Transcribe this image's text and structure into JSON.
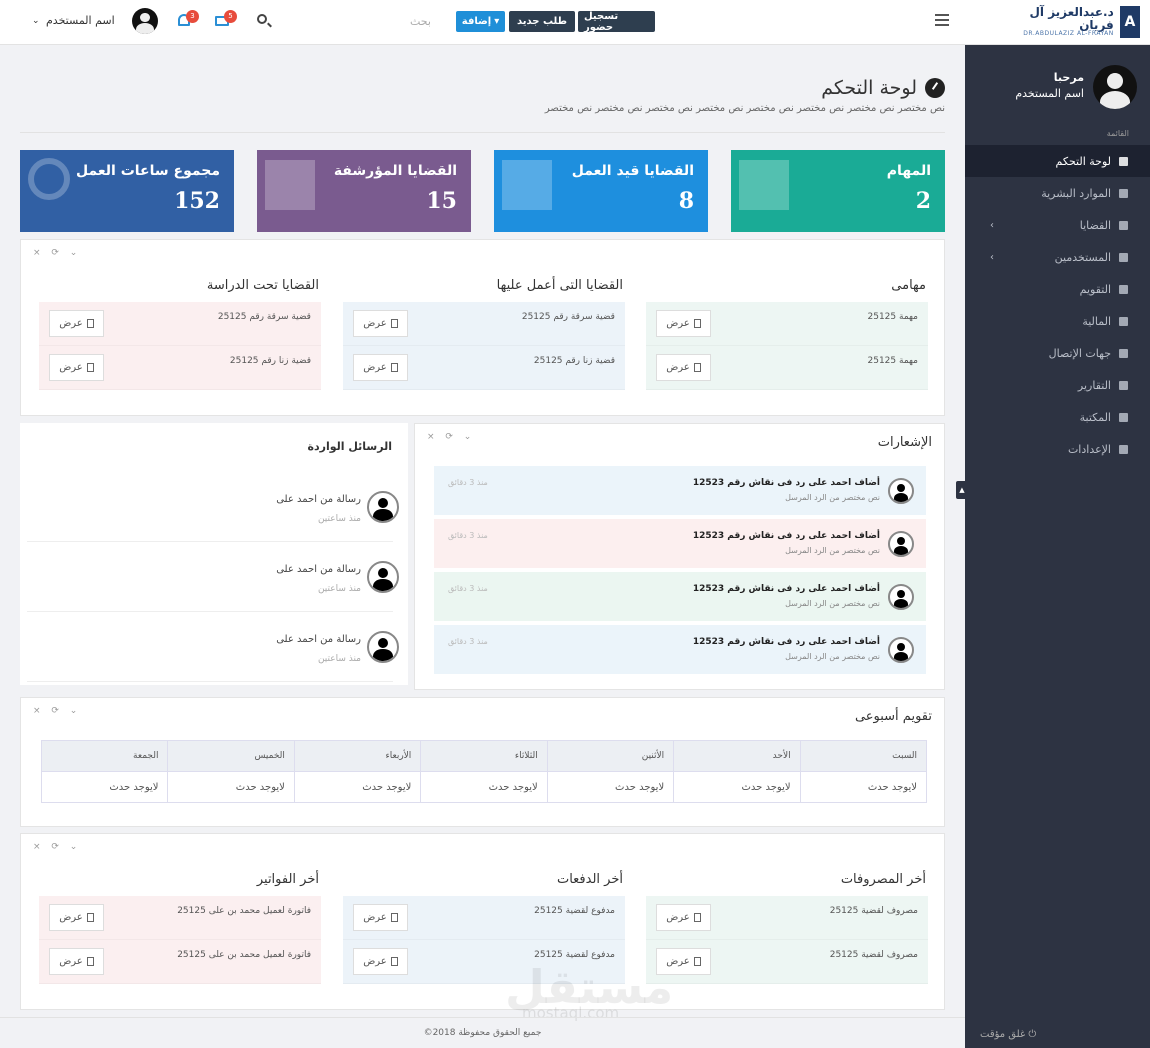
{
  "header": {
    "logo_ar": "د.عبدالعزيز آل فريان",
    "logo_en": "DR.ABDULAZIZ AL-FRAYAN",
    "logo_mark": "A",
    "btn_attendance": "تسجيل حضور",
    "btn_new_request": "طلب جديد",
    "btn_add": "إضافة",
    "search_text": "بحث",
    "mail_count": "5",
    "bell_count": "3",
    "user_name": "اسم المستخدم"
  },
  "sidebar": {
    "welcome": "مرحبا",
    "user_name": "اسم المستخدم",
    "menu_title": "القائمة",
    "items": [
      {
        "label": "لوحة التحكم",
        "icon": "home-icon",
        "active": true
      },
      {
        "label": "الموارد البشرية",
        "icon": "user-icon"
      },
      {
        "label": "القضايا",
        "icon": "gavel-icon",
        "arrow": "‹"
      },
      {
        "label": "المستخدمين",
        "icon": "users-icon",
        "arrow": "‹"
      },
      {
        "label": "التقويم",
        "icon": "calendar-icon"
      },
      {
        "label": "المالية",
        "icon": "money-icon"
      },
      {
        "label": "جهات الإتصال",
        "icon": "grid-icon"
      },
      {
        "label": "التقارير",
        "icon": "chart-icon"
      },
      {
        "label": "المكتبة",
        "icon": "book-icon"
      },
      {
        "label": "الإعدادات",
        "icon": "gear-icon"
      }
    ],
    "logout": "غلق مؤقت"
  },
  "page": {
    "title": "لوحة التحكم",
    "subtitle": "نص مختصر نص مختصر نص مختصر نص مختصر نص مختصر نص مختصر نص مختصر نص مختصر"
  },
  "stats": [
    {
      "label": "المهام",
      "value": "2",
      "color": "#1aab96"
    },
    {
      "label": "القضايا قيد العمل",
      "value": "8",
      "color": "#1e8fde"
    },
    {
      "label": "القضايا المؤرشفة",
      "value": "15",
      "color": "#7a5b8f"
    },
    {
      "label": "مجموع ساعات العمل",
      "value": "152",
      "color": "#3160a4"
    }
  ],
  "tasks_panel": {
    "columns": [
      {
        "title": "مهامى",
        "rows": [
          "مهمة 25125",
          "مهمة 25125"
        ],
        "bg": "#edf6f3"
      },
      {
        "title": "القضايا التى أعمل عليها",
        "rows": [
          "قضية سرقة رقم 25125",
          "قضية زنا رقم 25125"
        ],
        "bg": "#ecf3f9"
      },
      {
        "title": "القضايا تحت الدراسة",
        "rows": [
          "قضية سرقة رقم 25125",
          "قضية زنا رقم 25125"
        ],
        "bg": "#fbeff0"
      }
    ],
    "view_label": "عرض"
  },
  "notifications": {
    "title": "الإشعارات",
    "items": [
      {
        "title": "أضاف احمد على رد فى نقاش رقم 12523",
        "sub": "نص مختصر من الرد المرسل",
        "time": "منذ 3 دقائق",
        "bg": "#ebf4fa"
      },
      {
        "title": "أضاف احمد على رد فى نقاش رقم 12523",
        "sub": "نص مختصر من الرد المرسل",
        "time": "منذ 3 دقائق",
        "bg": "#fcefef"
      },
      {
        "title": "أضاف احمد على رد فى نقاش رقم 12523",
        "sub": "نص مختصر من الرد المرسل",
        "time": "منذ 3 دقائق",
        "bg": "#ebf6f1"
      },
      {
        "title": "أضاف احمد على رد فى نقاش رقم 12523",
        "sub": "نص مختصر من الرد المرسل",
        "time": "منذ 3 دقائق",
        "bg": "#ebf4fa"
      }
    ]
  },
  "messages": {
    "title": "الرسائل الواردة",
    "items": [
      {
        "text": "رسالة من احمد على",
        "time": "منذ ساعتين"
      },
      {
        "text": "رسالة من احمد على",
        "time": "منذ ساعتين"
      },
      {
        "text": "رسالة من احمد على",
        "time": "منذ ساعتين"
      }
    ]
  },
  "calendar": {
    "title": "تقويم أسبوعى",
    "days": [
      "السبت",
      "الأحد",
      "الأثنين",
      "الثلاثاء",
      "الأربعاء",
      "الخميس",
      "الجمعة"
    ],
    "empty": "لايوجد حدث"
  },
  "finance_panel": {
    "columns": [
      {
        "title": "أخر المصروفات",
        "rows": [
          "مصروف لقضية 25125",
          "مصروف لقضية 25125"
        ],
        "bg": "#edf6f3"
      },
      {
        "title": "أخر الدفعات",
        "rows": [
          "مدفوع لقضية 25125",
          "مدفوع لقضية 25125"
        ],
        "bg": "#ecf3f9"
      },
      {
        "title": "أخر الفواتير",
        "rows": [
          "فاتورة لعميل محمد بن على 25125",
          "فاتورة لعميل محمد بن على 25125"
        ],
        "bg": "#fbeff0"
      }
    ]
  },
  "footer": {
    "text": "©2018 جميع الحقوق محفوظة"
  },
  "watermark": {
    "text": "مستقل",
    "sub": "mostaql.com"
  }
}
